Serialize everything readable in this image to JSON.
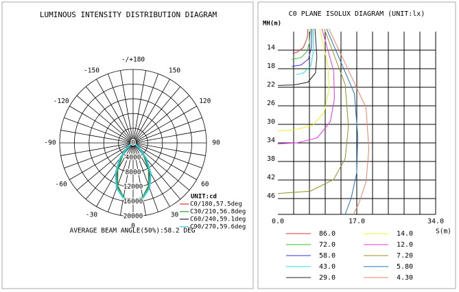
{
  "chart_data": [
    {
      "type": "polar",
      "title": "LUMINOUS INTENSITY DISTRIBUTION DIAGRAM",
      "unit_label": "UNIT:cd",
      "note": "AVERAGE BEAM ANGLE(50%):58.2 DEG",
      "angle_ticks": [
        {
          "value": 180,
          "label": "-/+180"
        },
        150,
        120,
        90,
        60,
        30,
        0,
        -30,
        -60,
        -90,
        -120,
        -150
      ],
      "rlim": [
        0,
        20000
      ],
      "rticks": [
        0,
        4000,
        8000,
        12000,
        16000,
        20000
      ],
      "x": [
        -90,
        -80,
        -70,
        -60,
        -50,
        -40,
        -30,
        -20,
        -10,
        0,
        10,
        20,
        30,
        40,
        50,
        60,
        70,
        80,
        90
      ],
      "series": [
        {
          "name": "C0/180,57.5deg",
          "color": "#e03030",
          "values": [
            0,
            0,
            100,
            400,
            1500,
            4500,
            8500,
            12500,
            15000,
            15700,
            15000,
            12500,
            8500,
            4500,
            1500,
            400,
            100,
            0,
            0
          ]
        },
        {
          "name": "C30/210,56.8deg",
          "color": "#20a020",
          "values": [
            0,
            0,
            100,
            350,
            1400,
            4300,
            8300,
            12300,
            14900,
            15700,
            14900,
            12300,
            8300,
            4300,
            1400,
            350,
            100,
            0,
            0
          ]
        },
        {
          "name": "C60/240,59.1deg",
          "color": "#202040",
          "values": [
            0,
            0,
            150,
            550,
            1900,
            5000,
            9000,
            12800,
            15100,
            15750,
            15100,
            12800,
            9000,
            5000,
            1900,
            550,
            150,
            0,
            0
          ]
        },
        {
          "name": "C90/270,59.6deg",
          "color": "#30c8d8",
          "values": [
            0,
            0,
            200,
            700,
            2200,
            5500,
            9500,
            13000,
            15200,
            15800,
            15200,
            13000,
            9500,
            5500,
            2200,
            700,
            200,
            0,
            0
          ]
        }
      ]
    },
    {
      "type": "isolux",
      "title": "C0 PLANE ISOLUX DIAGRAM (UNIT:lx)",
      "ylabel": "MH(m)",
      "xlabel": "S(m)",
      "xlim": [
        0,
        34
      ],
      "ylim": [
        10,
        50
      ],
      "xticks": [
        {
          "value": 0,
          "label": "0.0"
        },
        {
          "value": 17,
          "label": "17.0"
        },
        {
          "value": 34,
          "label": "34.0"
        }
      ],
      "yticks": [
        14,
        18,
        22,
        26,
        30,
        34,
        38,
        42,
        46
      ],
      "series": [
        {
          "name": "86.0",
          "color": "#e03030",
          "x": [
            6.5,
            6.3,
            5.5,
            4.2,
            3.2
          ],
          "y": [
            10,
            12,
            14,
            15,
            15.3
          ]
        },
        {
          "name": "72.0",
          "color": "#30c030",
          "x": [
            7,
            6.8,
            6.2,
            5,
            3
          ],
          "y": [
            10,
            13,
            15,
            16.2,
            16.6
          ]
        },
        {
          "name": "58.0",
          "color": "#3030e0",
          "x": [
            7.3,
            7.2,
            6.6,
            5,
            3
          ],
          "y": [
            10,
            14,
            16.5,
            17.8,
            18.1
          ]
        },
        {
          "name": "43.0",
          "color": "#20e0e0",
          "x": [
            7.6,
            7.6,
            7.1,
            5.5,
            4
          ],
          "y": [
            10,
            15,
            18,
            19.5,
            19.9
          ]
        },
        {
          "name": "29.0",
          "color": "#202020",
          "x": [
            8,
            8.4,
            8.1,
            6.5,
            3.5,
            0
          ],
          "y": [
            10,
            16,
            19.5,
            21.5,
            22.1,
            22.2
          ]
        },
        {
          "name": "14.0",
          "color": "#f0f020",
          "x": [
            9,
            10.8,
            11,
            10,
            7.5,
            3.5,
            0
          ],
          "y": [
            10,
            18,
            23,
            28,
            30.8,
            31.8,
            32
          ]
        },
        {
          "name": "12.0",
          "color": "#f030f0",
          "x": [
            9.5,
            12,
            12.2,
            11.3,
            8.5,
            4,
            0
          ],
          "y": [
            10,
            19,
            25,
            30,
            33.5,
            34.6,
            34.8
          ]
        },
        {
          "name": "7.20",
          "color": "#909020",
          "x": [
            10,
            14.5,
            15.2,
            14.5,
            12,
            7,
            0
          ],
          "y": [
            10,
            22,
            31,
            38,
            42.5,
            45,
            45.5
          ]
        },
        {
          "name": "5.80",
          "color": "#2070c0",
          "x": [
            10.5,
            16.5,
            17.2,
            17,
            15.8,
            14.5
          ],
          "y": [
            10,
            24,
            33,
            41,
            46.5,
            50
          ]
        },
        {
          "name": "4.30",
          "color": "#f08060",
          "x": [
            11,
            19,
            19.6,
            19,
            17.5,
            16.3
          ],
          "y": [
            10,
            27,
            36,
            43,
            47.5,
            50
          ]
        }
      ]
    }
  ]
}
